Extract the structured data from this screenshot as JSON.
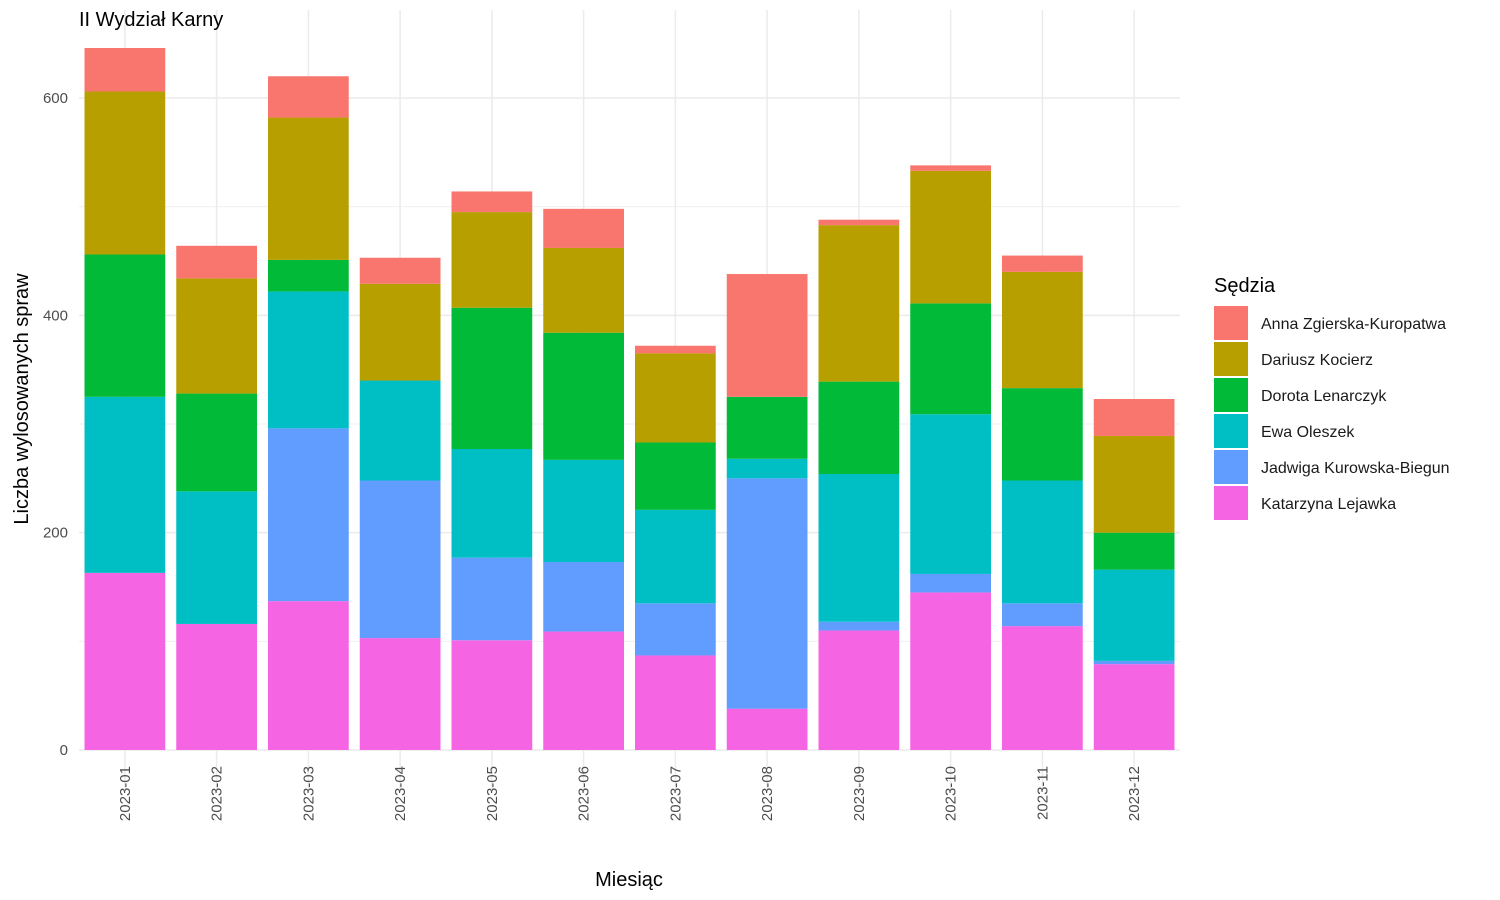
{
  "chart_data": {
    "type": "bar",
    "stacked": true,
    "title": "II Wydział Karny",
    "xlabel": "Miesiąc",
    "ylabel": "Liczba wylosowanych spraw",
    "ylim": [
      0,
      650
    ],
    "yticks": [
      0,
      200,
      400,
      600
    ],
    "grid": true,
    "legend_title": "Sędzia",
    "legend_position": "right",
    "categories": [
      "2023-01",
      "2023-02",
      "2023-03",
      "2023-04",
      "2023-05",
      "2023-06",
      "2023-07",
      "2023-08",
      "2023-09",
      "2023-10",
      "2023-11",
      "2023-12"
    ],
    "series": [
      {
        "name": "Katarzyna Lejawka",
        "color": "#F564E3",
        "values": [
          163,
          116,
          137,
          103,
          101,
          109,
          87,
          38,
          110,
          145,
          114,
          79
        ]
      },
      {
        "name": "Jadwiga Kurowska-Biegun",
        "color": "#619CFF",
        "values": [
          0,
          0,
          159,
          145,
          76,
          64,
          48,
          212,
          8,
          17,
          21,
          3
        ]
      },
      {
        "name": "Ewa Oleszek",
        "color": "#00BFC4",
        "values": [
          162,
          122,
          126,
          92,
          100,
          94,
          86,
          18,
          136,
          147,
          113,
          84
        ]
      },
      {
        "name": "Dorota Lenarczyk",
        "color": "#00BA38",
        "values": [
          131,
          90,
          29,
          0,
          130,
          117,
          62,
          57,
          85,
          102,
          85,
          34
        ]
      },
      {
        "name": "Dariusz Kocierz",
        "color": "#B79F00",
        "values": [
          150,
          106,
          131,
          89,
          88,
          78,
          82,
          0,
          144,
          122,
          107,
          89
        ]
      },
      {
        "name": "Anna Zgierska-Kuropatwa",
        "color": "#F8766D",
        "values": [
          40,
          30,
          38,
          24,
          19,
          36,
          7,
          113,
          5,
          5,
          15,
          34
        ]
      }
    ],
    "legend_order": [
      "Anna Zgierska-Kuropatwa",
      "Dariusz Kocierz",
      "Dorota Lenarczyk",
      "Ewa Oleszek",
      "Jadwiga Kurowska-Biegun",
      "Katarzyna Lejawka"
    ]
  }
}
